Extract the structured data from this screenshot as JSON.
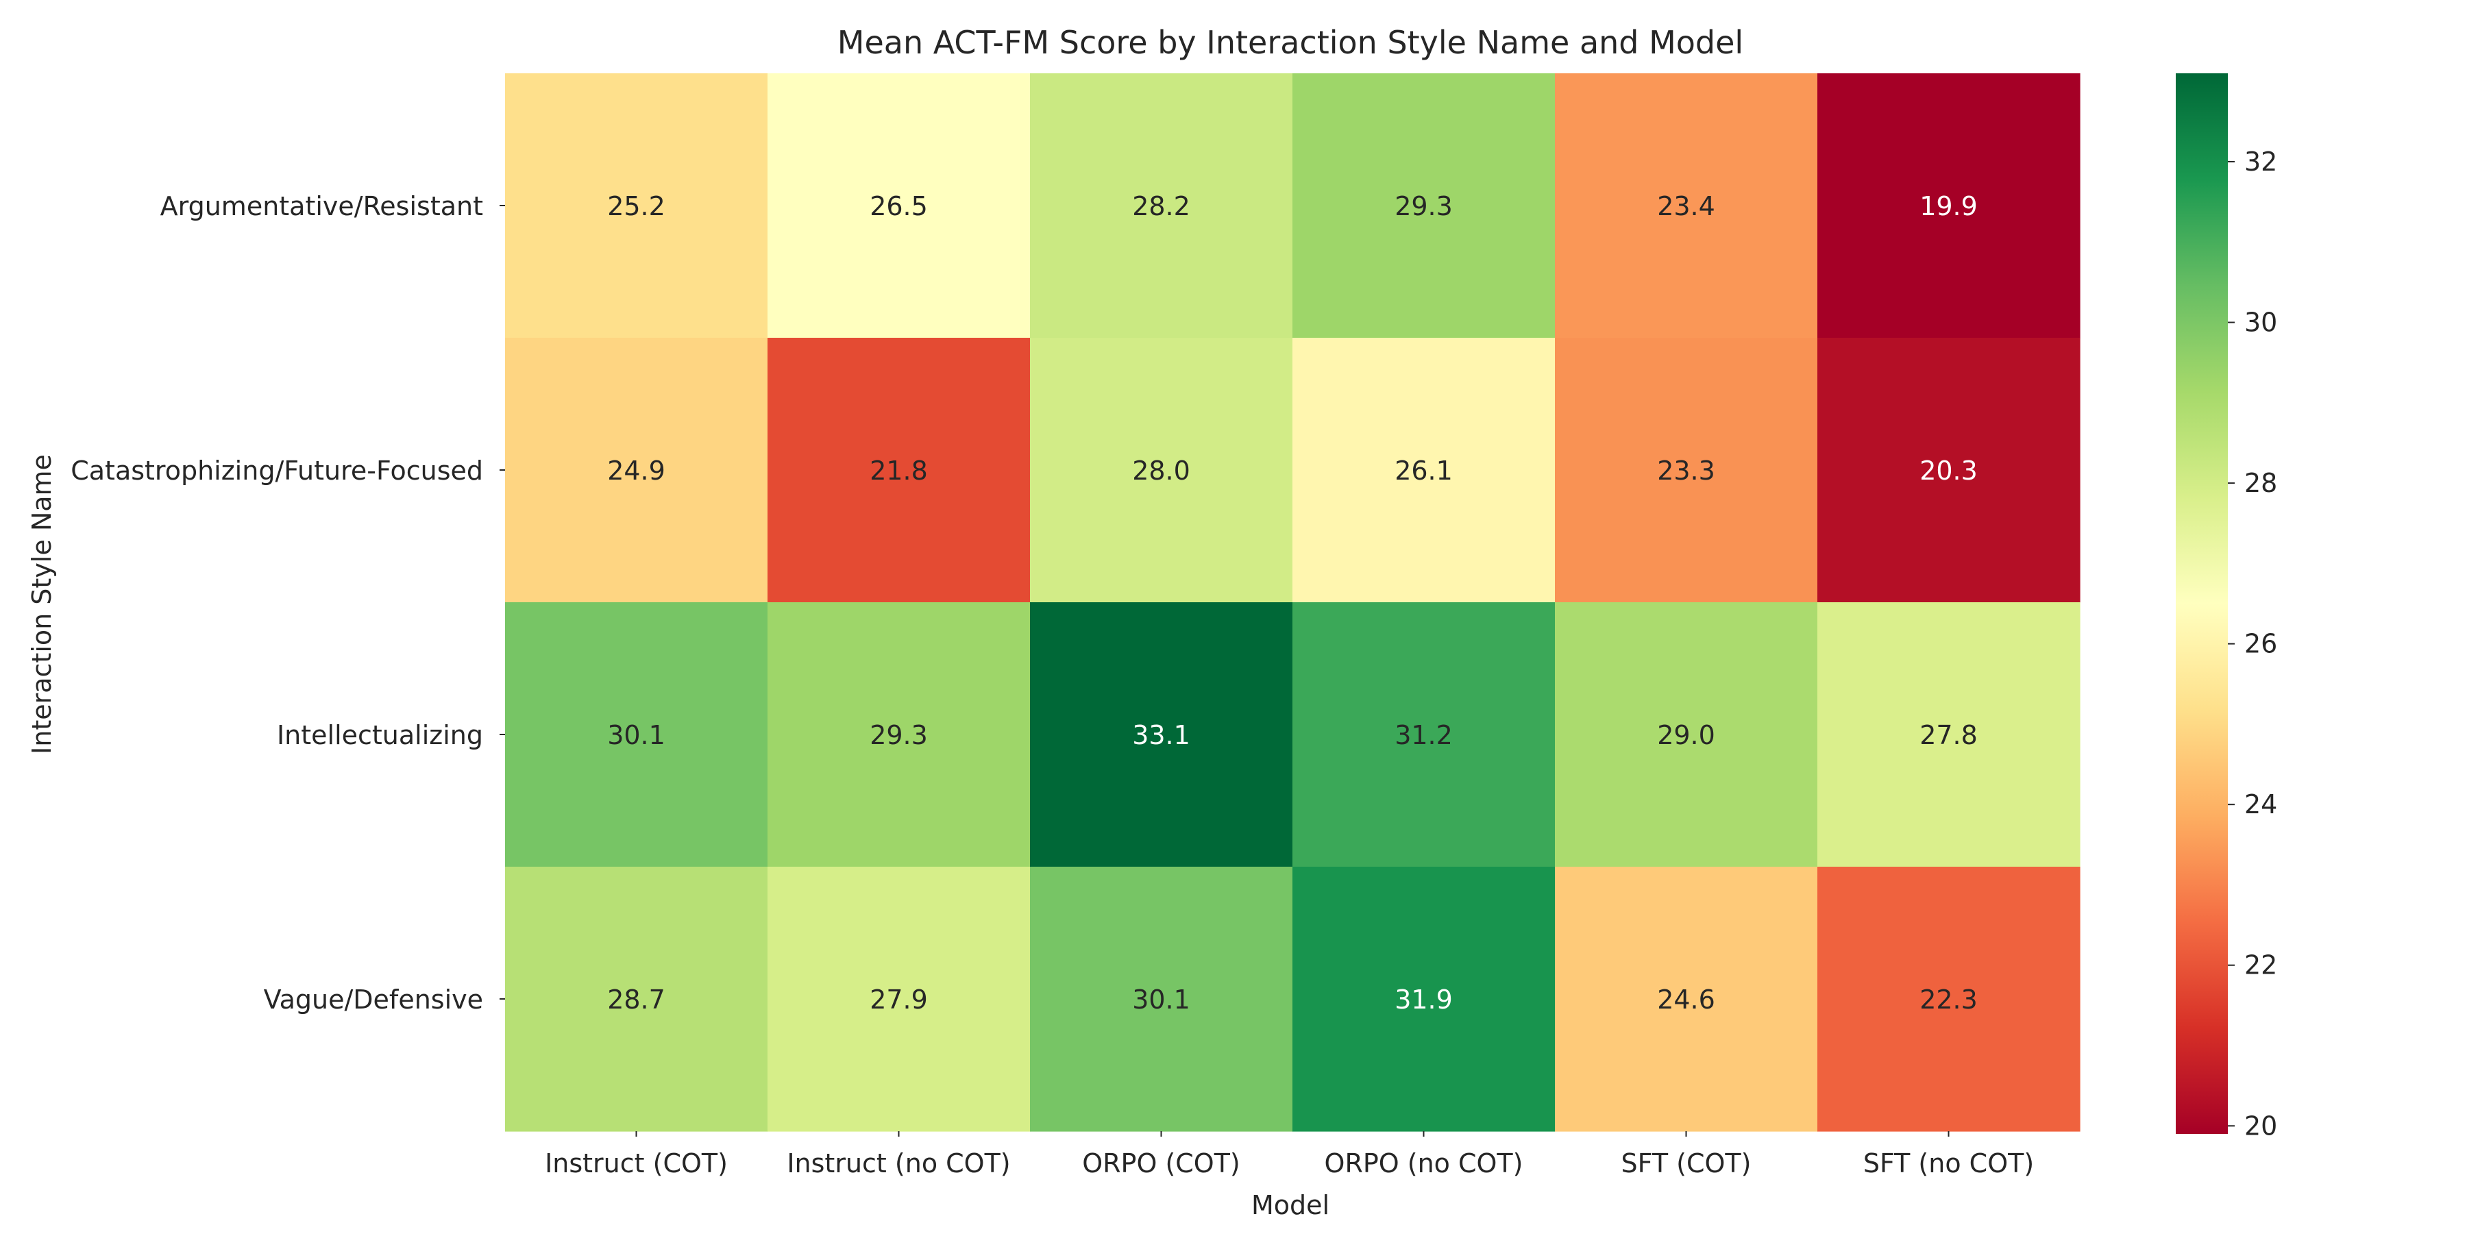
{
  "chart_data": {
    "type": "heatmap",
    "title": "Mean ACT-FM Score by Interaction Style Name and Model",
    "xlabel": "Model",
    "ylabel": "Interaction Style Name",
    "x_categories": [
      "Instruct (COT)",
      "Instruct (no COT)",
      "ORPO (COT)",
      "ORPO (no COT)",
      "SFT (COT)",
      "SFT (no COT)"
    ],
    "y_categories": [
      "Argumentative/Resistant",
      "Catastrophizing/Future-Focused",
      "Intellectualizing",
      "Vague/Defensive"
    ],
    "values": [
      [
        25.2,
        26.5,
        28.2,
        29.3,
        23.4,
        19.9
      ],
      [
        24.9,
        21.8,
        28.0,
        26.1,
        23.3,
        20.3
      ],
      [
        30.1,
        29.3,
        33.1,
        31.2,
        29.0,
        27.8
      ],
      [
        28.7,
        27.9,
        30.1,
        31.9,
        24.6,
        22.3
      ]
    ],
    "value_format": "0.1f",
    "colormap": "RdYlGn",
    "colorbar": {
      "vmin": 19.9,
      "vmax": 33.1,
      "ticks": [
        20,
        22,
        24,
        26,
        28,
        30,
        32
      ]
    }
  }
}
